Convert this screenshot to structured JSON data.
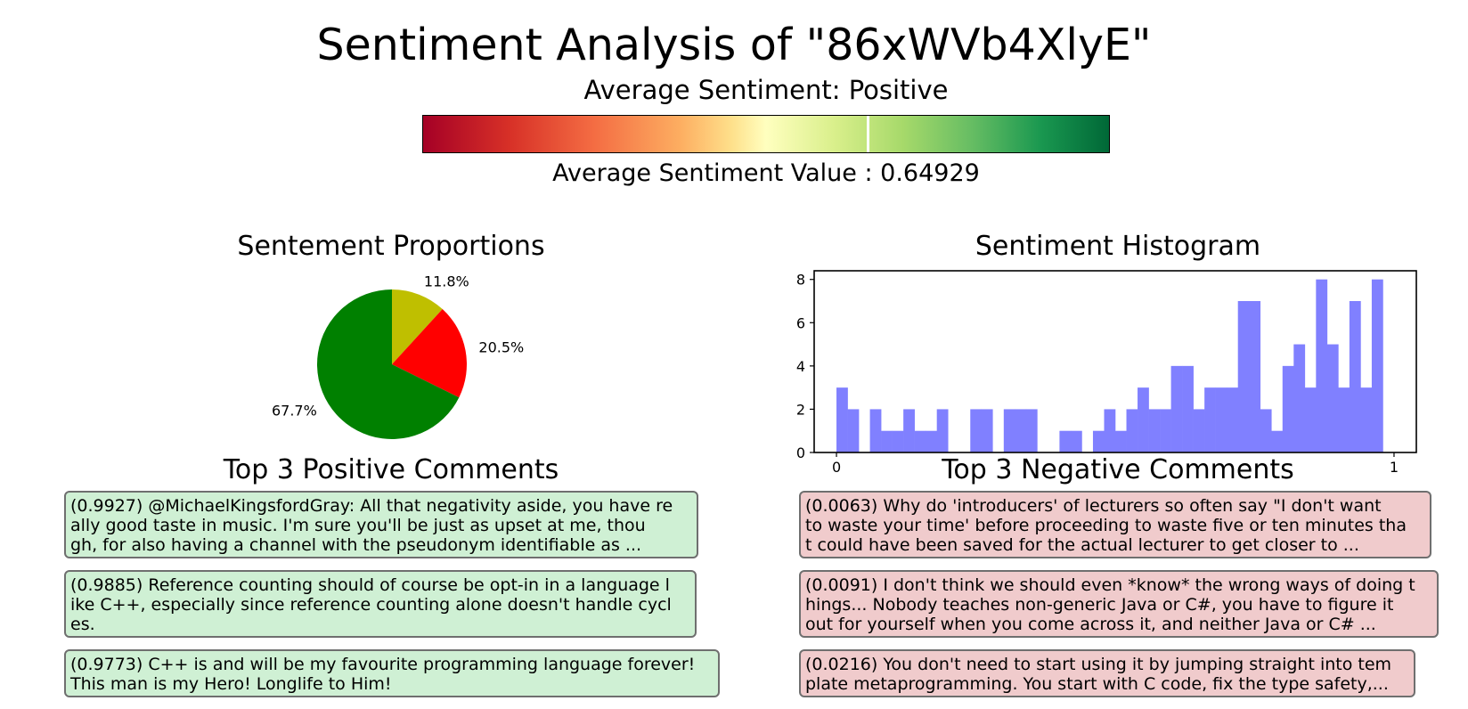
{
  "header": {
    "title": "Sentiment Analysis of \"86xWVb4XlyE\"",
    "average_sentiment_label": "Average Sentiment: Positive",
    "average_sentiment_value_text": "Average Sentiment Value : 0.64929"
  },
  "colorbar": {
    "value": 0.64929,
    "colormap": [
      "#a50026",
      "#ffffbf",
      "#006837"
    ]
  },
  "pie": {
    "title": "Sentement Proportions"
  },
  "histogram": {
    "title": "Sentiment Histogram"
  },
  "positive_comments": {
    "title": "Top 3 Positive Comments",
    "items": [
      {
        "text": "(0.9927) @MichaelKingsfordGray: All that negativity aside, you have re\nally good taste in music. I'm sure you'll be just as upset at me, thou\ngh, for also having a channel with the pseudonym identifiable as ..."
      },
      {
        "text": "(0.9885) Reference counting should of course be opt-in in a language l\nike C++, especially since reference counting alone doesn't handle cycl\nes."
      },
      {
        "text": "(0.9773) C++ is and will be my favourite programming language forever!\n This man is my Hero! Longlife to Him!"
      }
    ]
  },
  "negative_comments": {
    "title": "Top 3 Negative Comments",
    "items": [
      {
        "text": "(0.0063) Why do 'introducers' of lecturers so often say \"I don't want\nto waste your time' before proceeding to waste five or ten minutes tha\nt could have been saved for the actual lecturer to get closer to ..."
      },
      {
        "text": "(0.0091) I don't think we should even *know* the wrong ways of doing t\nhings... Nobody teaches non-generic Java or C#, you have to figure it\nout for yourself when you come across it, and neither Java or C# ..."
      },
      {
        "text": "(0.0216) You don't need to start using it by jumping straight into tem\nplate metaprogramming. You start with C code, fix the type safety,..."
      }
    ]
  },
  "chart_data": [
    {
      "type": "pie",
      "title": "Sentement Proportions",
      "slices": [
        {
          "value": 11.8,
          "label": "11.8%",
          "color": "#bfbf00"
        },
        {
          "value": 20.5,
          "label": "20.5%",
          "color": "#ff0000"
        },
        {
          "value": 67.7,
          "label": "67.7%",
          "color": "#008000"
        }
      ],
      "start_angle_deg": 90,
      "direction": "clockwise"
    },
    {
      "type": "bar",
      "title": "Sentiment Histogram",
      "bin_width": 0.02,
      "x": [
        0.01,
        0.03,
        0.07,
        0.09,
        0.11,
        0.13,
        0.15,
        0.17,
        0.19,
        0.25,
        0.27,
        0.31,
        0.33,
        0.35,
        0.41,
        0.43,
        0.47,
        0.49,
        0.51,
        0.53,
        0.55,
        0.57,
        0.59,
        0.61,
        0.63,
        0.65,
        0.67,
        0.69,
        0.71,
        0.73,
        0.75,
        0.77,
        0.79,
        0.81,
        0.83,
        0.85,
        0.87,
        0.89,
        0.91,
        0.93,
        0.95,
        0.97
      ],
      "values": [
        3,
        2,
        2,
        1,
        1,
        2,
        1,
        1,
        2,
        2,
        2,
        2,
        2,
        2,
        1,
        1,
        1,
        2,
        1,
        2,
        3,
        2,
        2,
        4,
        4,
        2,
        3,
        3,
        3,
        7,
        7,
        2,
        1,
        4,
        5,
        3,
        8,
        5,
        3,
        7,
        3,
        8
      ],
      "color": "#8080ff",
      "xlim": [
        -0.04,
        1.04
      ],
      "ylim": [
        0,
        8.4
      ],
      "x_ticks": [
        0,
        1
      ],
      "y_ticks": [
        0,
        2,
        4,
        6,
        8
      ]
    }
  ]
}
